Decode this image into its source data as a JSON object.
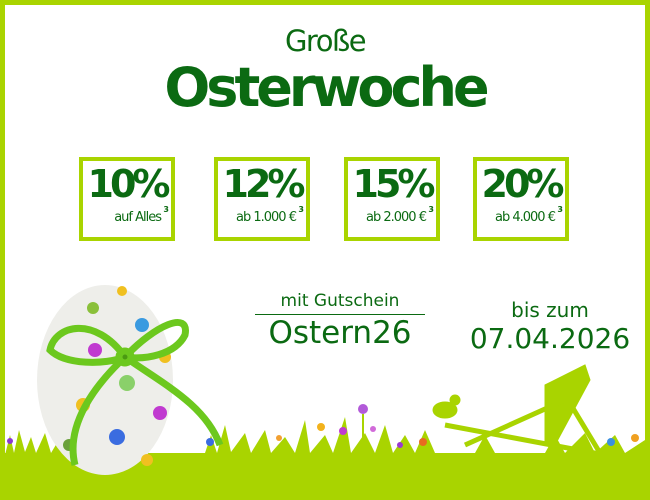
{
  "headline": {
    "line1": "Große",
    "line2": "Osterwoche"
  },
  "offers": [
    {
      "percent": "10%",
      "condition": "auf Alles",
      "footnote": "3"
    },
    {
      "percent": "12%",
      "condition": "ab 1.000 €",
      "footnote": "3"
    },
    {
      "percent": "15%",
      "condition": "ab 2.000 €",
      "footnote": "3"
    },
    {
      "percent": "20%",
      "condition": "ab 4.000 €",
      "footnote": "3"
    }
  ],
  "voucher": {
    "label": "mit Gutschein",
    "code": "Ostern26"
  },
  "validity": {
    "label": "bis zum",
    "date": "07.04.2026"
  },
  "colors": {
    "brand_green": "#0b6a12",
    "lime": "#a9d400"
  }
}
